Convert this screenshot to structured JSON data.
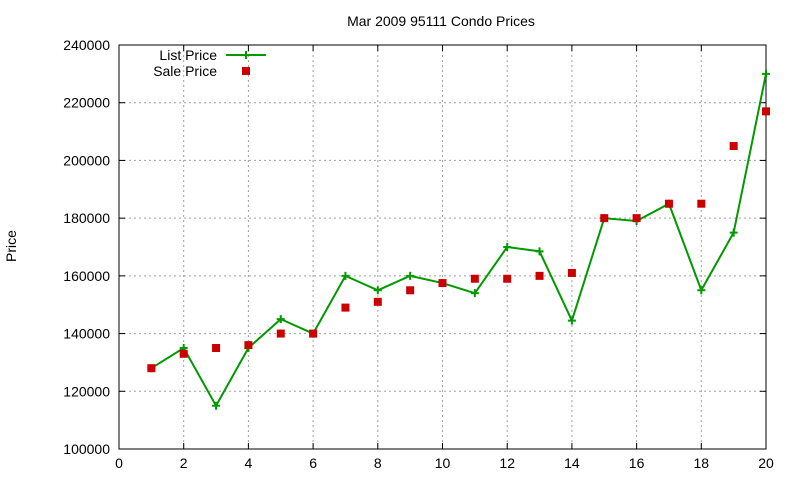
{
  "chart_data": {
    "type": "line",
    "title": "Mar 2009 95111 Condo Prices",
    "xlabel": "",
    "ylabel": "Price",
    "xlim": [
      0,
      20
    ],
    "ylim": [
      100000,
      240000
    ],
    "x_ticks": [
      "0",
      "2",
      "4",
      "6",
      "8",
      "10",
      "12",
      "14",
      "16",
      "18",
      "20"
    ],
    "y_ticks": [
      "100000",
      "120000",
      "140000",
      "160000",
      "180000",
      "200000",
      "220000",
      "240000"
    ],
    "grid": true,
    "legend_position": "top-left",
    "series": [
      {
        "name": "List Price",
        "style": "line+plus",
        "color": "#009900",
        "x": [
          1,
          2,
          3,
          4,
          5,
          6,
          7,
          8,
          9,
          10,
          11,
          12,
          13,
          14,
          15,
          16,
          17,
          18,
          19,
          20
        ],
        "values": [
          128000,
          135000,
          115000,
          135000,
          145000,
          140000,
          160000,
          155000,
          160000,
          157500,
          154000,
          170000,
          168500,
          144500,
          180000,
          179000,
          185000,
          155000,
          175000,
          230000
        ]
      },
      {
        "name": "Sale Price",
        "style": "square",
        "color": "#cc0000",
        "x": [
          1,
          2,
          3,
          4,
          5,
          6,
          7,
          8,
          9,
          10,
          11,
          12,
          13,
          14,
          15,
          16,
          17,
          18,
          19,
          20
        ],
        "values": [
          128000,
          133000,
          135000,
          136000,
          140000,
          140000,
          149000,
          151000,
          155000,
          157500,
          159000,
          159000,
          160000,
          161000,
          180000,
          180000,
          185000,
          185000,
          205000,
          217000
        ]
      }
    ]
  }
}
